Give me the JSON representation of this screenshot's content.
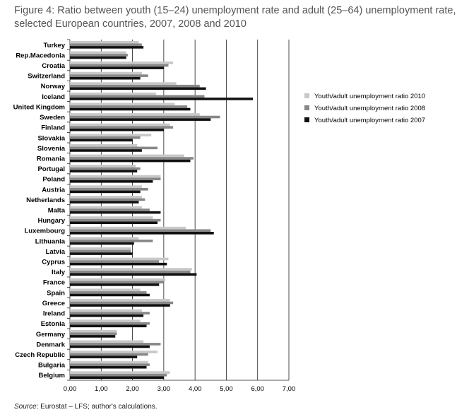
{
  "chart_data": {
    "type": "bar",
    "orientation": "horizontal",
    "title": "Figure 4: Ratio between youth (15–24) unemployment rate and adult (25–64) unemployment rate, selected European countries, 2007, 2008 and 2010",
    "xlim": [
      0,
      7
    ],
    "xticks": [
      "0,00",
      "1,00",
      "2,00",
      "3,00",
      "4,00",
      "5,00",
      "6,00",
      "7,00"
    ],
    "grid": true,
    "legend_position": "right",
    "categories": [
      "Turkey",
      "Rep.Macedonia",
      "Croatia",
      "Switzerland",
      "Norway",
      "Iceland",
      "United Kingdom",
      "Sweden",
      "Finland",
      "Slovakia",
      "Slovenia",
      "Romania",
      "Portugal",
      "Poland",
      "Austria",
      "Netherlands",
      "Malta",
      "Hungary",
      "Luxembourg",
      "Lithuania",
      "Latvia",
      "Cyprus",
      "Italy",
      "France",
      "Spain",
      "Greece",
      "Ireland",
      "Estonia",
      "Germany",
      "Denmark",
      "Czech Republic",
      "Bulgaria",
      "Belgium"
    ],
    "series": [
      {
        "name": "Youth/adult unemployment ratio 2010",
        "color": "#c8c8c8",
        "values": [
          2.2,
          1.8,
          3.3,
          2.3,
          3.4,
          2.75,
          3.35,
          4.15,
          3.2,
          2.6,
          2.15,
          3.65,
          2.1,
          2.9,
          2.3,
          2.3,
          2.3,
          2.65,
          3.7,
          2.2,
          1.95,
          3.15,
          3.9,
          3.05,
          2.25,
          3.2,
          2.3,
          2.25,
          1.5,
          2.35,
          2.8,
          2.5,
          3.2
        ]
      },
      {
        "name": "Youth/adult unemployment ratio 2008",
        "color": "#888888",
        "values": [
          2.3,
          1.85,
          3.15,
          2.5,
          4.15,
          4.3,
          3.75,
          4.8,
          3.3,
          2.25,
          2.8,
          3.95,
          2.25,
          2.9,
          2.5,
          2.4,
          2.55,
          2.9,
          4.5,
          2.65,
          1.95,
          2.85,
          3.85,
          3.0,
          2.45,
          3.3,
          2.55,
          2.55,
          1.5,
          2.9,
          2.5,
          2.55,
          3.1
        ]
      },
      {
        "name": "Youth/adult unemployment ratio 2007",
        "color": "#111111",
        "values": [
          2.35,
          1.8,
          3.0,
          2.25,
          4.35,
          5.85,
          3.85,
          4.5,
          3.0,
          2.0,
          2.3,
          3.85,
          2.15,
          2.65,
          2.25,
          2.2,
          2.9,
          2.8,
          4.6,
          2.05,
          2.0,
          3.1,
          4.05,
          2.85,
          2.55,
          3.2,
          2.35,
          2.45,
          1.45,
          2.55,
          2.15,
          2.45,
          3.0
        ]
      }
    ],
    "source_label": "Source",
    "source_text": ": Eurostat – LFS; author's calculations."
  }
}
